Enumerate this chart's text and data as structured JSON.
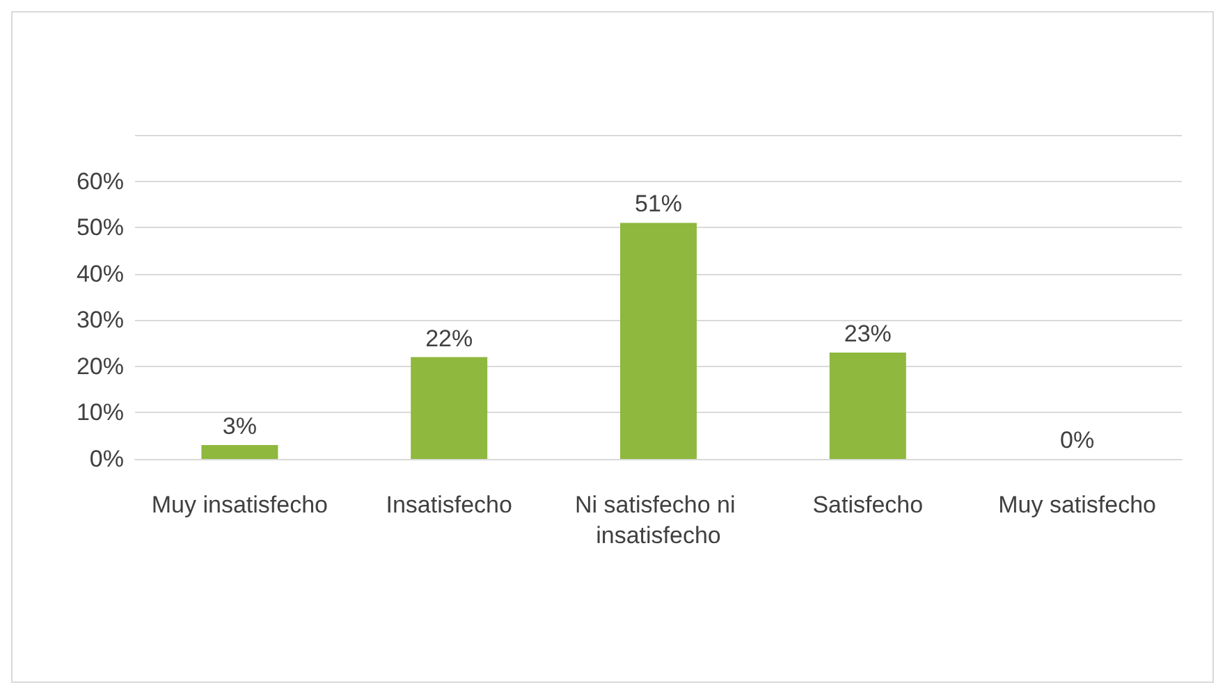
{
  "chart_data": {
    "type": "bar",
    "categories": [
      "Muy insatisfecho",
      "Insatisfecho",
      "Ni satisfecho ni insatisfecho",
      "Satisfecho",
      "Muy satisfecho"
    ],
    "values": [
      3,
      22,
      51,
      23,
      0
    ],
    "color": "#8fb83e",
    "value_labels": [
      "3%",
      "22%",
      "51%",
      "23%",
      "0%"
    ],
    "ylim": [
      0,
      70
    ],
    "yticks": [
      {
        "value": 0,
        "label": "0%"
      },
      {
        "value": 10,
        "label": "10%"
      },
      {
        "value": 20,
        "label": "20%"
      },
      {
        "value": 30,
        "label": "30%"
      },
      {
        "value": 40,
        "label": "40%"
      },
      {
        "value": 50,
        "label": "50%"
      },
      {
        "value": 60,
        "label": "60%"
      },
      {
        "value": 70,
        "label": null
      }
    ],
    "grid": "y"
  }
}
